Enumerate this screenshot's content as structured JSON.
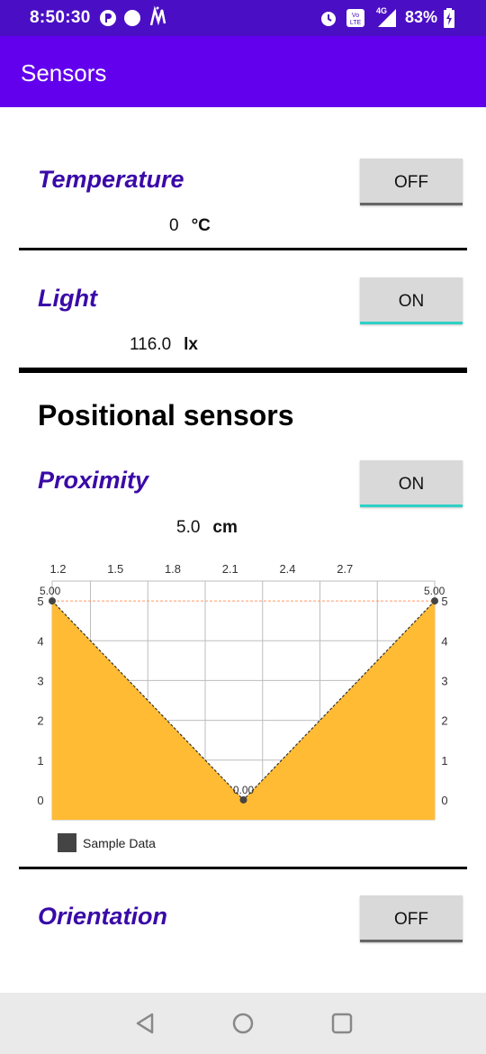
{
  "status_bar": {
    "time": "8:50:30",
    "battery": "83%",
    "network": "4G",
    "icons": [
      "p-icon",
      "circle-icon",
      "m-logo-icon",
      "alarm-icon",
      "volte-icon",
      "signal-icon",
      "battery-icon"
    ]
  },
  "app_bar": {
    "title": "Sensors"
  },
  "temperature": {
    "name": "Temperature",
    "value": "0",
    "unit": "°C",
    "button": "OFF"
  },
  "light": {
    "name": "Light",
    "value": "116.0",
    "unit": "lx",
    "button": "ON"
  },
  "positional": {
    "heading": "Positional sensors"
  },
  "proximity": {
    "name": "Proximity",
    "value": "5.0",
    "unit": "cm",
    "button": "ON"
  },
  "orientation": {
    "name": "Orientation",
    "button": "OFF"
  },
  "colors": {
    "accent": "#6200ee",
    "status": "#4a0fc4",
    "label": "#3a0aa8",
    "on": "#2fd0c7",
    "fill": "#ffbb33"
  },
  "chart_data": {
    "type": "area",
    "x": [
      1,
      2,
      3
    ],
    "values": [
      5.0,
      0.0,
      5.0
    ],
    "point_labels": [
      "5.00",
      "0.00",
      "5.00"
    ],
    "x_ticks": [
      "1.2",
      "1.5",
      "1.8",
      "2.1",
      "2.4",
      "2.7"
    ],
    "y_ticks_left": [
      "0",
      "1",
      "2",
      "3",
      "4",
      "5"
    ],
    "y_ticks_right": [
      "0",
      "1",
      "2",
      "3",
      "4",
      "5"
    ],
    "xlim": [
      1,
      3
    ],
    "ylim": [
      -0.5,
      5.5
    ],
    "grid": true,
    "series": [
      {
        "name": "Sample Data",
        "values": [
          5.0,
          0.0,
          5.0
        ]
      }
    ],
    "legend_position": "bottom-left"
  }
}
